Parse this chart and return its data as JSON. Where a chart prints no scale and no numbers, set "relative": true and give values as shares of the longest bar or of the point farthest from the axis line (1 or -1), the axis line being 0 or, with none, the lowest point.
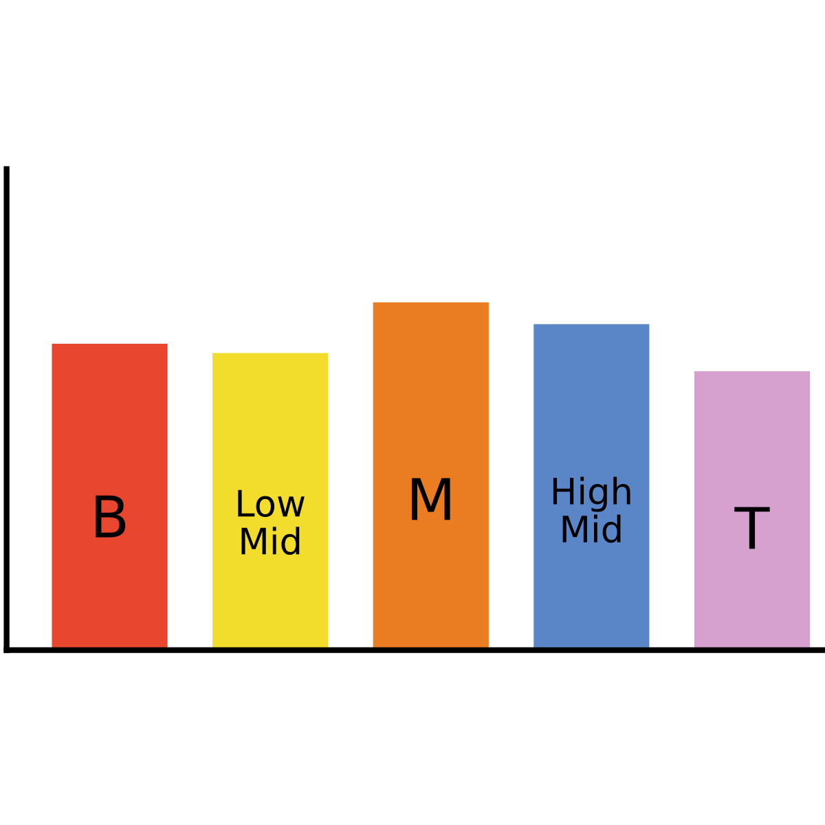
{
  "chart_data": {
    "type": "bar",
    "relative": true,
    "categories": [
      "B",
      "Low\nMid",
      "M",
      "High\nMid",
      "T"
    ],
    "values": [
      0.881,
      0.854,
      1,
      0.937,
      0.802
    ],
    "colors": [
      "#e8462e",
      "#f2dd2c",
      "#ea7d22",
      "#5a86c8",
      "#d6a0cf"
    ]
  }
}
